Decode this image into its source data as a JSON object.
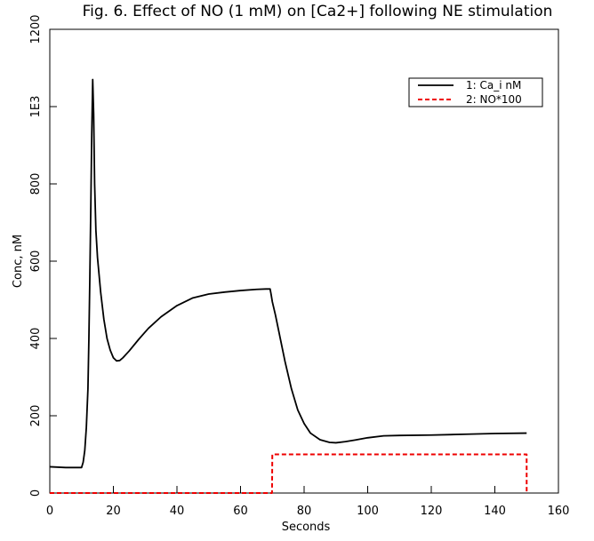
{
  "chart_data": {
    "type": "line",
    "title": "Fig. 6. Effect of NO (1 mM) on [Ca2+] following NE stimulation",
    "xlabel": "Seconds",
    "ylabel": "Conc, nM",
    "xlim": [
      0,
      160
    ],
    "ylim": [
      0,
      1200
    ],
    "x_ticks": [
      0,
      20,
      40,
      60,
      80,
      100,
      120,
      140,
      160
    ],
    "x_tick_labels": [
      "0",
      "20",
      "40",
      "60",
      "80",
      "100",
      "120",
      "140",
      "160"
    ],
    "y_ticks": [
      0,
      200,
      400,
      600,
      800,
      1000,
      1200
    ],
    "y_tick_labels": [
      "0",
      "200",
      "400",
      "600",
      "800",
      "1E3",
      "1200"
    ],
    "grid": false,
    "legend_position": "top-right",
    "series": [
      {
        "name": "1: Ca_i nM",
        "color": "#000000",
        "style": "solid",
        "x": [
          0,
          5,
          10,
          10.5,
          11,
          11.5,
          12,
          12.3,
          12.6,
          12.9,
          13.2,
          13.5,
          13.8,
          14.1,
          14.5,
          15,
          16,
          17,
          18,
          19,
          20,
          21,
          22,
          23,
          25,
          28,
          31,
          35,
          40,
          45,
          50,
          55,
          60,
          65,
          68,
          69.3,
          69.6,
          70,
          71,
          72,
          74,
          76,
          78,
          80,
          82,
          85,
          88,
          90,
          93,
          96,
          100,
          105,
          110,
          120,
          130,
          140,
          150
        ],
        "y": [
          68,
          66,
          66,
          80,
          110,
          170,
          270,
          400,
          560,
          740,
          930,
          1070,
          980,
          800,
          680,
          610,
          520,
          450,
          400,
          370,
          350,
          342,
          343,
          350,
          368,
          398,
          426,
          456,
          485,
          505,
          515,
          520,
          524,
          527,
          528,
          528,
          515,
          495,
          460,
          420,
          340,
          270,
          215,
          180,
          155,
          138,
          131,
          130,
          133,
          137,
          143,
          148,
          149,
          150,
          152,
          154,
          155
        ]
      },
      {
        "name": "2: NO*100",
        "color": "#ee0000",
        "style": "dashed",
        "x": [
          0,
          69.9,
          70,
          150,
          150.01
        ],
        "y": [
          0,
          0,
          100,
          100,
          0
        ]
      }
    ]
  }
}
